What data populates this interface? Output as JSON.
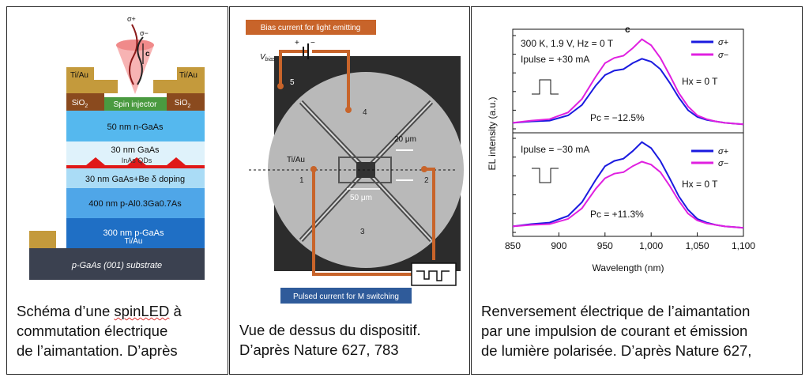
{
  "panel1": {
    "layers": {
      "tiau_left": "Ti/Au",
      "tiau_right": "Ti/Au",
      "sio2_left": "SiO",
      "sio2_right": "SiO",
      "sio2_sub": "2",
      "spin_injector": "Spin injector",
      "n_gaas": "50 nm n-GaAs",
      "gaas_30": "30 nm GaAs",
      "qds": "InAs QDs",
      "gaas_be": "30 nm GaAs+Be δ doping",
      "algaas": "400 nm p-Al0.3Ga0.7As",
      "p_gaas": "300 nm p-GaAs",
      "tiau_contact": "Ti/Au",
      "substrate": "p-GaAs (001) substrate"
    },
    "light": {
      "sigma_plus": "σ+",
      "sigma_minus": "σ−",
      "c": "c"
    },
    "caption_lines": [
      "Schéma d’une ",
      "spinLED",
      " à",
      "commutation électrique",
      "de l’aimantation. D’après"
    ]
  },
  "panel2": {
    "bias_label": "Bias current for light emitting",
    "pulsed_label": "Pulsed current for M switching",
    "vbias": "V",
    "vbias_sub": "bias",
    "plus": "+",
    "minus": "−",
    "electrodes": [
      "5",
      "4",
      "1",
      "2",
      "3"
    ],
    "tiau": "Ti/Au",
    "scale_20": "20 μm",
    "scale_50": "50 μm",
    "caption_lines": [
      "Vue de dessus du dispositif.",
      "D’après Nature 627, 783"
    ]
  },
  "panel3": {
    "chart_data": [
      {
        "type": "line",
        "title": "300 K, 1.9 V, Hz = 0 T",
        "annotation_pulse": "Ipulse = +30 mA",
        "annotation_field": "Hx = 0 T",
        "annotation_pc": "Pc = −12.5%",
        "xlim": [
          850,
          1100
        ],
        "x": [
          850,
          870,
          890,
          910,
          925,
          940,
          950,
          960,
          970,
          980,
          990,
          1000,
          1010,
          1020,
          1030,
          1040,
          1050,
          1060,
          1070,
          1080,
          1090,
          1100
        ],
        "series": [
          {
            "name": "σ+",
            "color": "#1a1adf",
            "values": [
              0.08,
              0.1,
              0.11,
              0.18,
              0.32,
              0.58,
              0.72,
              0.78,
              0.8,
              0.88,
              0.94,
              0.9,
              0.8,
              0.62,
              0.42,
              0.25,
              0.16,
              0.12,
              0.1,
              0.08,
              0.07,
              0.06
            ]
          },
          {
            "name": "σ−",
            "color": "#e020e0",
            "values": [
              0.08,
              0.11,
              0.13,
              0.22,
              0.4,
              0.7,
              0.88,
              0.95,
              0.98,
              1.08,
              1.2,
              1.12,
              0.95,
              0.72,
              0.48,
              0.3,
              0.18,
              0.13,
              0.1,
              0.08,
              0.07,
              0.06
            ]
          }
        ]
      },
      {
        "type": "line",
        "annotation_pulse": "Ipulse = −30 mA",
        "annotation_field": "Hx = 0 T",
        "annotation_pc": "Pc = +11.3%",
        "xlim": [
          850,
          1100
        ],
        "xlabel": "Wavelength (nm)",
        "ylabel": "EL intensity (a.u.)",
        "x": [
          850,
          870,
          890,
          910,
          925,
          940,
          950,
          960,
          970,
          980,
          990,
          1000,
          1010,
          1020,
          1030,
          1040,
          1050,
          1060,
          1070,
          1080,
          1090,
          1100
        ],
        "series": [
          {
            "name": "σ+",
            "color": "#1a1adf",
            "values": [
              0.08,
              0.11,
              0.13,
              0.22,
              0.4,
              0.7,
              0.88,
              0.95,
              0.98,
              1.08,
              1.2,
              1.12,
              0.95,
              0.72,
              0.48,
              0.3,
              0.18,
              0.13,
              0.1,
              0.08,
              0.07,
              0.06
            ]
          },
          {
            "name": "σ−",
            "color": "#e020e0",
            "values": [
              0.08,
              0.1,
              0.11,
              0.18,
              0.32,
              0.58,
              0.72,
              0.78,
              0.8,
              0.88,
              0.94,
              0.9,
              0.8,
              0.62,
              0.42,
              0.25,
              0.16,
              0.12,
              0.1,
              0.08,
              0.07,
              0.06
            ]
          }
        ]
      }
    ],
    "xticks": [
      "850",
      "900",
      "950",
      "1,000",
      "1,050",
      "1,100"
    ],
    "c_label": "c",
    "caption_lines": [
      "Renversement électrique de l’aimantation",
      "par une impulsion de courant et émission",
      "de lumière polarisée. D’après Nature 627,"
    ]
  }
}
